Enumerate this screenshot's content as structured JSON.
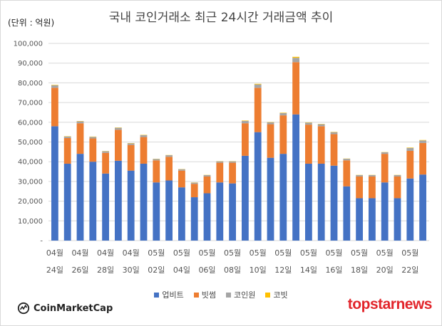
{
  "chart_data": {
    "type": "bar",
    "stacked": true,
    "title": "국내 코인거래소 최근 24시간 거래금액 추이",
    "unit_label": "(단위 : 억원)",
    "ylim": [
      0,
      100000
    ],
    "yticks": [
      "-",
      "10,000",
      "20,000",
      "30,000",
      "40,000",
      "50,000",
      "60,000",
      "70,000",
      "80,000",
      "90,000",
      "100,000"
    ],
    "grid": true,
    "legend_position": "bottom",
    "x_label_pairs": [
      [
        "04월",
        "24일"
      ],
      [
        "04월",
        "26일"
      ],
      [
        "04월",
        "28일"
      ],
      [
        "04월",
        "30일"
      ],
      [
        "05월",
        "02일"
      ],
      [
        "05월",
        "04일"
      ],
      [
        "05월",
        "06일"
      ],
      [
        "05월",
        "08일"
      ],
      [
        "05월",
        "10일"
      ],
      [
        "05월",
        "12일"
      ],
      [
        "05월",
        "14일"
      ],
      [
        "05월",
        "16일"
      ],
      [
        "05월",
        "18일"
      ],
      [
        "05월",
        "20일"
      ],
      [
        "05월",
        "22일"
      ]
    ],
    "series": [
      {
        "name": "업비트",
        "color": "#4472c4",
        "values": [
          58000,
          39000,
          44000,
          40000,
          34000,
          40500,
          35500,
          39000,
          29500,
          30500,
          27000,
          22000,
          24000,
          29500,
          29000,
          43000,
          55000,
          42000,
          44000,
          64000,
          39000,
          39000,
          38000,
          27500,
          21500,
          21500,
          29500,
          21500,
          31500,
          33500
        ]
      },
      {
        "name": "빗썸",
        "color": "#ed7d31",
        "values": [
          19500,
          13000,
          15500,
          11800,
          10500,
          15700,
          13000,
          13500,
          11200,
          12000,
          8500,
          6800,
          8500,
          10000,
          10500,
          16500,
          22500,
          17000,
          19500,
          26500,
          19800,
          19000,
          16000,
          13200,
          11000,
          11000,
          14500,
          11000,
          14000,
          16000
        ]
      },
      {
        "name": "코인원",
        "color": "#a5a5a5",
        "values": [
          1300,
          800,
          1000,
          800,
          800,
          1000,
          800,
          1000,
          700,
          800,
          700,
          600,
          700,
          700,
          700,
          1200,
          1700,
          1000,
          1200,
          2200,
          1000,
          1000,
          1000,
          800,
          700,
          700,
          800,
          700,
          1500,
          1300
        ]
      },
      {
        "name": "코빗",
        "color": "#ffc000",
        "values": [
          200,
          150,
          150,
          150,
          100,
          150,
          150,
          150,
          100,
          100,
          100,
          100,
          100,
          100,
          100,
          200,
          300,
          150,
          200,
          500,
          150,
          150,
          150,
          100,
          100,
          100,
          100,
          100,
          200,
          200
        ]
      }
    ]
  },
  "brand": {
    "left_logo": "CoinMarketCap",
    "right_logo": "topstarnews"
  }
}
